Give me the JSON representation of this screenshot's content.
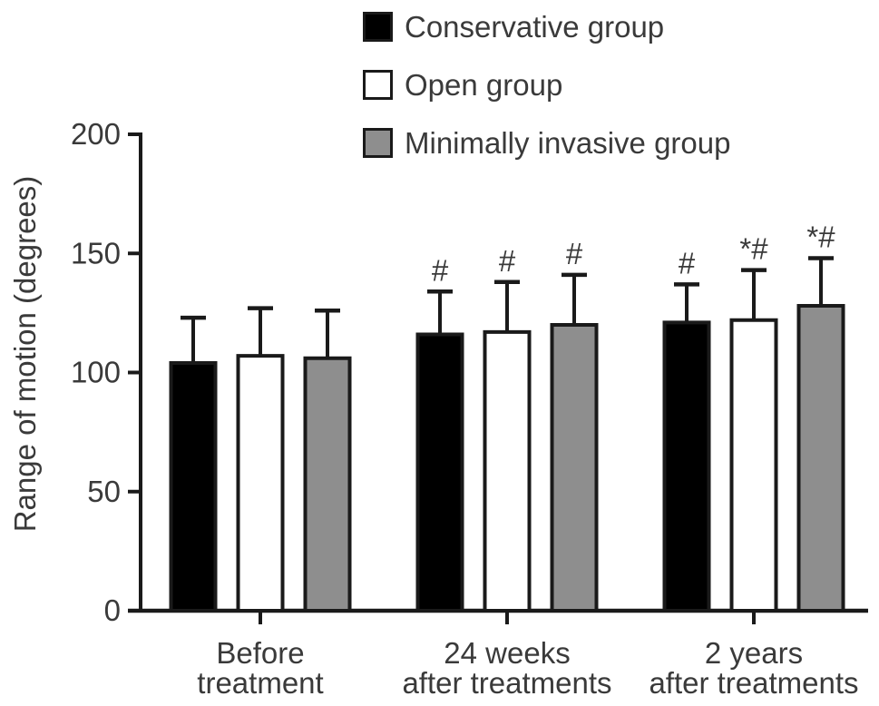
{
  "chart_data": {
    "type": "bar",
    "title": "",
    "xlabel": "",
    "ylabel": "Range of motion (degrees)",
    "ylim": [
      0,
      200
    ],
    "yticks": [
      0,
      50,
      100,
      150,
      200
    ],
    "grid": false,
    "legend_position": "top-center",
    "error_bars": "upper SD whisker with cap",
    "categories": [
      [
        "Before",
        "treatment"
      ],
      [
        "24 weeks",
        "after treatments"
      ],
      [
        "2 years",
        "after treatments"
      ]
    ],
    "series": [
      {
        "name": "Conservative group",
        "color": "#000000",
        "values": [
          104,
          116,
          121
        ],
        "sd": [
          19,
          18,
          16
        ],
        "annotations": [
          "",
          "#",
          "#"
        ]
      },
      {
        "name": "Open group",
        "color": "#ffffff",
        "values": [
          107,
          117,
          122
        ],
        "sd": [
          20,
          21,
          21
        ],
        "annotations": [
          "",
          "#",
          "*#"
        ]
      },
      {
        "name": "Minimally invasive group",
        "color": "#8e8e8e",
        "values": [
          106,
          120,
          128
        ],
        "sd": [
          20,
          21,
          20
        ],
        "annotations": [
          "",
          "#",
          "*#"
        ]
      }
    ]
  }
}
